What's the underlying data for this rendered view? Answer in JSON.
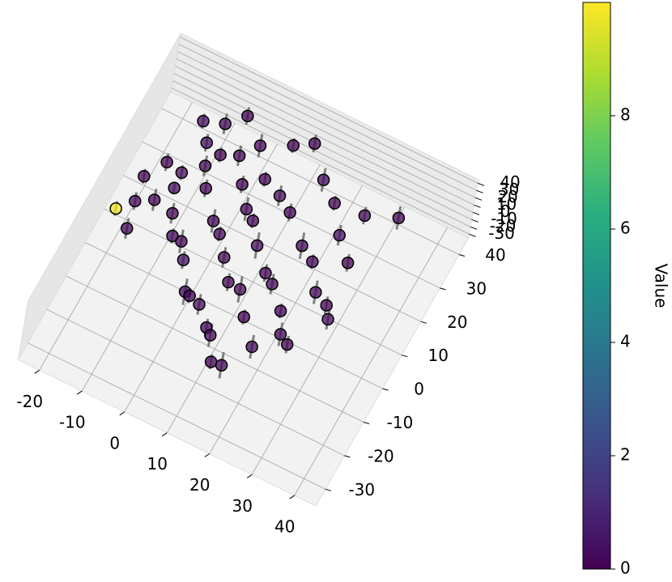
{
  "chart_data": {
    "type": "scatter3d",
    "colorbar_label": "Value",
    "xlim": [
      -25,
      45
    ],
    "ylim": [
      -35,
      45
    ],
    "zlim": [
      -35,
      45
    ],
    "xticks": [
      -20,
      -10,
      0,
      10,
      20,
      30,
      40
    ],
    "yticks": [
      -30,
      -20,
      -10,
      0,
      10,
      20,
      30,
      40
    ],
    "zticks": [
      -30,
      -20,
      -10,
      0,
      10,
      20,
      30,
      40
    ],
    "clim": [
      0,
      10
    ],
    "cticks": [
      0,
      2,
      4,
      6,
      8
    ],
    "colormap": "viridis",
    "grid": true,
    "x": [
      -21,
      -18,
      -15,
      -12,
      -10,
      -8,
      -5,
      -3,
      0,
      2,
      5,
      8,
      10,
      12,
      15,
      -16,
      -13,
      -9,
      -6,
      -2,
      1,
      4,
      7,
      11,
      14,
      18,
      -11,
      -7,
      -4,
      0,
      3,
      6,
      9,
      13,
      16,
      20,
      22,
      25,
      -14,
      -10,
      -6,
      -1,
      3,
      8,
      12,
      17,
      21,
      24,
      28,
      30,
      5,
      9,
      14,
      19,
      23,
      27,
      -19,
      -17,
      26,
      32
    ],
    "y": [
      5,
      8,
      12,
      15,
      10,
      6,
      3,
      0,
      -5,
      -8,
      -10,
      -12,
      -15,
      -18,
      -20,
      20,
      22,
      25,
      18,
      14,
      10,
      6,
      2,
      -2,
      -6,
      -10,
      30,
      28,
      32,
      24,
      20,
      16,
      12,
      8,
      4,
      0,
      -4,
      -8,
      35,
      38,
      40,
      36,
      30,
      26,
      22,
      18,
      14,
      10,
      6,
      2,
      40,
      42,
      36,
      30,
      24,
      20,
      15,
      2,
      30,
      35
    ],
    "z": [
      0,
      5,
      -3,
      8,
      2,
      -5,
      10,
      4,
      -8,
      6,
      12,
      -2,
      7,
      -10,
      3,
      9,
      -6,
      1,
      11,
      -4,
      5,
      0,
      -7,
      13,
      2,
      -9,
      4,
      8,
      -3,
      6,
      -1,
      10,
      3,
      -5,
      7,
      0,
      -8,
      5,
      2,
      -4,
      9,
      1,
      -6,
      4,
      11,
      -2,
      6,
      -9,
      3,
      8,
      0,
      5,
      -3,
      7,
      2,
      -6,
      4,
      -2,
      10,
      1
    ],
    "values": [
      9.8,
      0.2,
      0.1,
      0.3,
      0.1,
      0.2,
      0.1,
      0.4,
      0.2,
      0.1,
      0.3,
      0.1,
      0.2,
      0.1,
      0.2,
      0.1,
      0.3,
      0.2,
      0.1,
      0.2,
      0.1,
      0.3,
      0.1,
      0.2,
      0.1,
      0.2,
      0.3,
      0.1,
      0.2,
      0.1,
      0.2,
      0.1,
      0.3,
      0.1,
      0.2,
      0.1,
      0.2,
      0.1,
      0.3,
      0.2,
      0.1,
      0.2,
      0.1,
      0.3,
      0.1,
      0.2,
      0.1,
      0.2,
      0.1,
      0.3,
      0.2,
      0.1,
      0.2,
      0.1,
      0.3,
      0.1,
      0.2,
      0.1,
      0.2,
      0.1
    ],
    "z_errors": [
      10,
      12,
      15,
      8,
      14,
      10,
      16,
      12,
      18,
      10,
      14,
      12,
      16,
      10,
      18,
      12,
      10,
      14,
      12,
      16,
      10,
      14,
      12,
      18,
      10,
      16,
      12,
      10,
      14,
      12,
      16,
      10,
      18,
      12,
      14,
      10,
      16,
      12,
      10,
      14,
      12,
      16,
      10,
      14,
      12,
      18,
      10,
      16,
      12,
      14,
      10,
      12,
      16,
      10,
      14,
      12,
      10,
      14,
      12,
      16
    ]
  }
}
